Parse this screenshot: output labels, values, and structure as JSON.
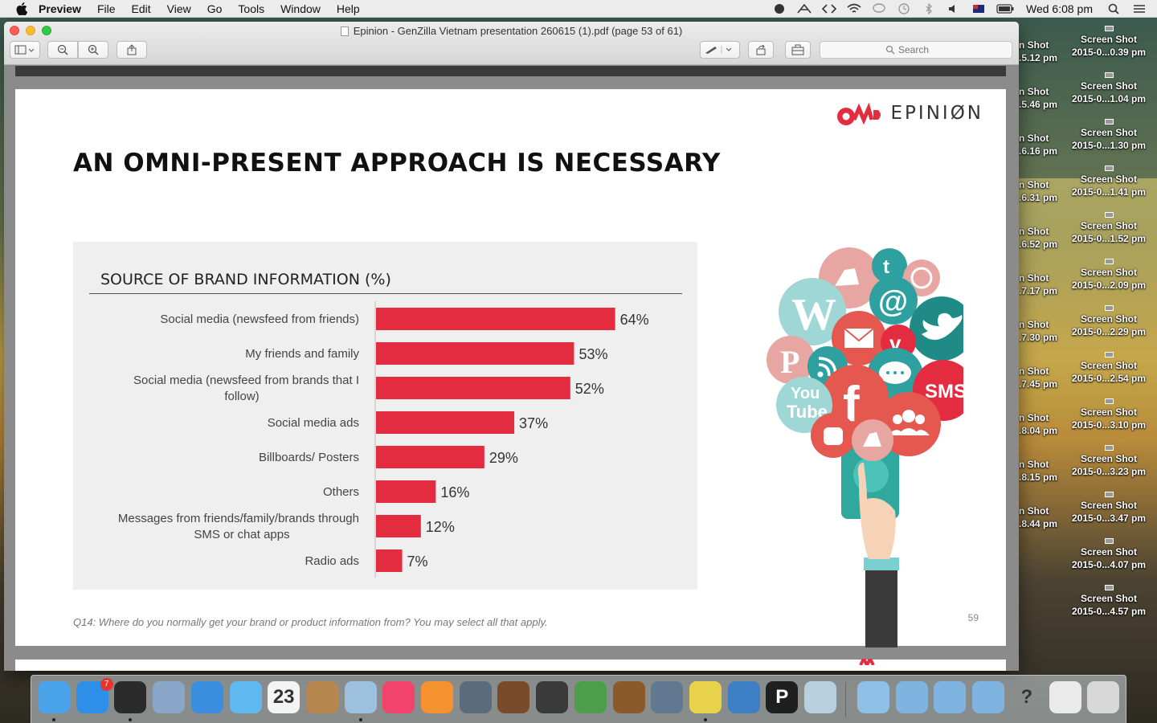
{
  "menubar": {
    "app_name": "Preview",
    "items": [
      "File",
      "Edit",
      "View",
      "Go",
      "Tools",
      "Window",
      "Help"
    ],
    "clock": "Wed 6:08 pm",
    "status_icons": [
      "evernote-icon",
      "crow-icon",
      "code-icon",
      "wifi-icon",
      "chat-icon",
      "time-machine-icon",
      "bluetooth-icon",
      "volume-icon",
      "flag-icon",
      "battery-icon"
    ]
  },
  "window": {
    "title": "Epinion - GenZilla Vietnam presentation 260615 (1).pdf (page 53 of 61)",
    "search_placeholder": "Search"
  },
  "slide": {
    "brand": "EPINIØN",
    "title": "AN OMNI-PRESENT APPROACH IS NECESSARY",
    "footnote": "Q14: Where do you normally get your brand or product information from? You may select all that apply.",
    "page_number": "59"
  },
  "chart_data": {
    "type": "bar",
    "orientation": "horizontal",
    "title": "SOURCE OF BRAND INFORMATION (%)",
    "categories": [
      [
        "Social media (newsfeed from friends)"
      ],
      [
        "My friends and family"
      ],
      [
        "Social media (newsfeed from brands that I",
        "follow)"
      ],
      [
        "Social media ads"
      ],
      [
        "Billboards/ Posters"
      ],
      [
        "Others"
      ],
      [
        "Messages from friends/family/brands through",
        "SMS or chat apps"
      ],
      [
        "Radio ads"
      ]
    ],
    "values": [
      64,
      53,
      52,
      37,
      29,
      16,
      12,
      7
    ],
    "value_labels": [
      "64%",
      "53%",
      "52%",
      "37%",
      "29%",
      "16%",
      "12%",
      "7%"
    ],
    "bar_color": "#e32c40",
    "xlim": [
      0,
      100
    ]
  },
  "illustration": {
    "sms_label": "SMS",
    "youtube_top": "You",
    "youtube_bottom": "Tube"
  },
  "desktop": {
    "icons_right": [
      [
        "Screen Shot",
        "2015-0...0.39 pm"
      ],
      [
        "Screen Shot",
        "2015-0...1.04 pm"
      ],
      [
        "Screen Shot",
        "2015-0...1.30 pm"
      ],
      [
        "Screen Shot",
        "2015-0...1.41 pm"
      ],
      [
        "Screen Shot",
        "2015-0...1.52 pm"
      ],
      [
        "Screen Shot",
        "2015-0...2.09 pm"
      ],
      [
        "Screen Shot",
        "2015-0...2.29 pm"
      ],
      [
        "Screen Shot",
        "2015-0...2.54 pm"
      ],
      [
        "Screen Shot",
        "2015-0...3.10 pm"
      ],
      [
        "Screen Shot",
        "2015-0...3.23 pm"
      ],
      [
        "Screen Shot",
        "2015-0...3.47 pm"
      ],
      [
        "Screen Shot",
        "2015-0...4.07 pm"
      ],
      [
        "Screen Shot",
        "2015-0...4.57 pm"
      ]
    ],
    "icons_left": [
      [
        "n Shot",
        ".5.12 pm"
      ],
      [
        "n Shot",
        ".5.46 pm"
      ],
      [
        "n Shot",
        ".6.16 pm"
      ],
      [
        "n Shot",
        ".6.31 pm"
      ],
      [
        "n Shot",
        ".6.52 pm"
      ],
      [
        "n Shot",
        ".7.17 pm"
      ],
      [
        "n Shot",
        ".7.30 pm"
      ],
      [
        "n Shot",
        ".7.45 pm"
      ],
      [
        "n Shot",
        ".8.04 pm"
      ],
      [
        "n Shot",
        ".8.15 pm"
      ],
      [
        "n Shot",
        ".8.44 pm"
      ]
    ]
  },
  "dock": {
    "apps": [
      {
        "name": "finder-icon",
        "color": "#4aa3e8",
        "running": true
      },
      {
        "name": "app-store-icon",
        "color": "#2d8fe8",
        "badge": "7"
      },
      {
        "name": "dashboard-icon",
        "color": "#2b2b2b",
        "running": true
      },
      {
        "name": "preview-eagle-icon",
        "color": "#8aa6c8"
      },
      {
        "name": "safari-icon",
        "color": "#3b8de0"
      },
      {
        "name": "messages-icon",
        "color": "#5fb8f0"
      },
      {
        "name": "calendar-icon",
        "color": "#f4f4f4",
        "label": "23"
      },
      {
        "name": "contacts-icon",
        "color": "#b7864f"
      },
      {
        "name": "preview-icon",
        "color": "#9cc0de",
        "running": true
      },
      {
        "name": "itunes-icon",
        "color": "#f2436c"
      },
      {
        "name": "ibooks-icon",
        "color": "#f5922f"
      },
      {
        "name": "photo-booth-icon",
        "color": "#5a6b7b"
      },
      {
        "name": "garageband-icon",
        "color": "#7a4b2a"
      },
      {
        "name": "imovie-icon",
        "color": "#3a3a3a"
      },
      {
        "name": "numbers-icon",
        "color": "#4c9e4a"
      },
      {
        "name": "keynote-icon",
        "color": "#8a5a2a"
      },
      {
        "name": "xcode-icon",
        "color": "#607890"
      },
      {
        "name": "chrome-icon",
        "color": "#e8d24a",
        "running": true
      },
      {
        "name": "word-icon",
        "color": "#3d7fc4"
      },
      {
        "name": "pages-icon",
        "color": "#1f1f1f",
        "label": "P"
      },
      {
        "name": "iphoto-icon",
        "color": "#b8d0e0"
      }
    ],
    "right_items": [
      {
        "name": "documents-folder-icon",
        "color": "#8fc0e8"
      },
      {
        "name": "downloads-folder-icon",
        "color": "#7fb4e0"
      },
      {
        "name": "applications-folder-icon",
        "color": "#7fb4e0"
      },
      {
        "name": "folder-icon",
        "color": "#7fb4e0"
      },
      {
        "name": "help-icon",
        "color": "transparent",
        "label": "?"
      },
      {
        "name": "screenshot-stack-icon",
        "color": "#eaeaea"
      },
      {
        "name": "trash-icon",
        "color": "#d8d8d8"
      }
    ]
  }
}
